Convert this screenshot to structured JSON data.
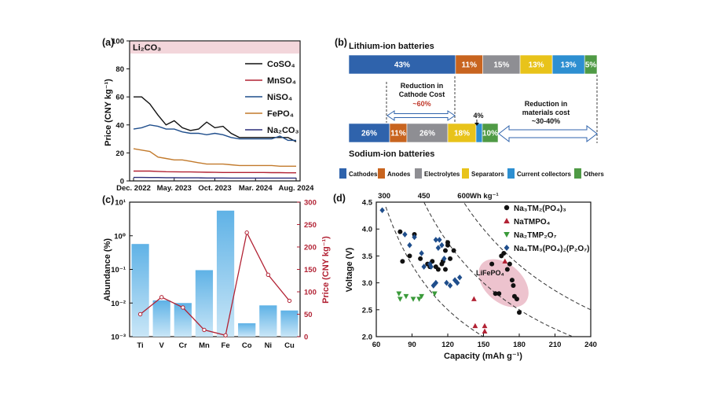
{
  "figure": {
    "panel_a": {
      "label": "(a)",
      "inner_title": "Li₂CO₃",
      "ylabel": "Price (CNY kg⁻¹)",
      "legend": [
        "CoSO₄",
        "MnSO₄",
        "NiSO₄",
        "FePO₄",
        "Na₂CO₃"
      ]
    },
    "panel_b": {
      "label": "(b)",
      "li_title": "Lithium-ion batteries",
      "na_title": "Sodium-ion batteries",
      "reduction_cathode": [
        "Reduction in",
        "Cathode Cost"
      ],
      "reduction_cathode_value": "~60%",
      "reduction_materials": [
        "Reduction in",
        "materials cost",
        "~30-40%"
      ],
      "four_pct": "4%",
      "legend": [
        "Cathodes",
        "Anodes",
        "Electrolytes",
        "Separators",
        "Current collectors",
        "Others"
      ]
    },
    "panel_c": {
      "label": "(c)",
      "ylabel_left": "Abundance (%)",
      "ylabel_right": "Price (CNY kg⁻¹)"
    },
    "panel_d": {
      "label": "(d)",
      "xlabel": "Capacity (mAh g⁻¹)",
      "ylabel": "Voltage (V)",
      "wh_unit": "Wh kg⁻¹",
      "ellipse_label": "LiFePO₄",
      "legend": [
        "Na₃TM₂(PO₄)₃",
        "NaTMPO₄",
        "Na₂TMP₂O₇",
        "Na₄TM₃(PO₄)₂(P₂O₇)"
      ]
    }
  },
  "chart_data": [
    {
      "type": "line",
      "panel": "a",
      "x": [
        "Dec. 2022",
        "Jan. 2023",
        "Feb. 2023",
        "Mar. 2023",
        "Apr. 2023",
        "May. 2023",
        "Jun. 2023",
        "Jul. 2023",
        "Aug. 2023",
        "Sep. 2023",
        "Oct. 2023",
        "Nov. 2023",
        "Dec. 2023",
        "Jan. 2024",
        "Feb. 2024",
        "Mar. 2024",
        "Apr. 2024",
        "May. 2024",
        "Jun. 2024",
        "Jul. 2024",
        "Aug. 2024"
      ],
      "xticks": [
        "Dec. 2022",
        "May. 2023",
        "Oct. 2023",
        "Mar. 2024",
        "Aug. 2024"
      ],
      "ylim": [
        0,
        100
      ],
      "yticks": [
        0,
        20,
        40,
        60,
        80,
        100
      ],
      "series": [
        {
          "name": "CoSO₄",
          "color": "#111111",
          "values": [
            60,
            60,
            55,
            47,
            40,
            43,
            38,
            36,
            37,
            42,
            38,
            39,
            34,
            31,
            31,
            31,
            31,
            31,
            31,
            31,
            28
          ]
        },
        {
          "name": "MnSO₄",
          "color": "#b22234",
          "values": [
            7,
            7,
            7,
            6.8,
            6.6,
            6.5,
            6.4,
            6.4,
            6.3,
            6.2,
            6.1,
            6,
            6,
            6,
            6,
            6,
            6,
            5.9,
            5.9,
            5.8,
            5.8
          ]
        },
        {
          "name": "NiSO₄",
          "color": "#1f4e8c",
          "values": [
            37,
            38,
            40,
            39,
            37,
            37,
            35,
            34,
            34,
            33,
            34,
            33,
            31,
            30,
            30,
            30,
            30,
            30,
            32,
            29,
            29
          ]
        },
        {
          "name": "FePO₄",
          "color": "#c27a2c",
          "values": [
            23,
            22,
            21,
            17,
            16,
            15,
            15,
            14,
            13,
            12,
            12,
            12,
            11.5,
            11,
            11,
            11,
            11,
            11,
            10.5,
            10.5,
            10.5
          ]
        },
        {
          "name": "Na₂CO₃",
          "color": "#2b2e7a",
          "values": [
            2.5,
            2.5,
            2.4,
            2.4,
            2.3,
            2.3,
            2.2,
            2.2,
            2.2,
            2.1,
            2.1,
            2.1,
            2,
            2,
            2,
            2,
            2,
            2,
            2,
            2,
            2
          ]
        }
      ]
    },
    {
      "type": "bar",
      "panel": "b",
      "series": [
        {
          "name": "Lithium-ion batteries",
          "categories": [
            "Cathodes",
            "Anodes",
            "Electrolytes",
            "Separators",
            "Current collectors",
            "Others"
          ],
          "values": [
            43,
            11,
            15,
            13,
            13,
            5
          ]
        },
        {
          "name": "Sodium-ion batteries",
          "categories": [
            "Cathodes",
            "Anodes",
            "Electrolytes",
            "Separators",
            "Current collectors",
            "Others"
          ],
          "values": [
            26,
            11,
            26,
            18,
            4,
            10
          ]
        }
      ],
      "colors": [
        "#2f63ac",
        "#c8641f",
        "#8e8e93",
        "#e8c31a",
        "#2d8fd1",
        "#4f9a45"
      ]
    },
    {
      "type": "bar",
      "panel": "c",
      "categories": [
        "Ti",
        "V",
        "Cr",
        "Mn",
        "Fe",
        "Co",
        "Ni",
        "Cu"
      ],
      "abundance_percent": [
        0.57,
        0.012,
        0.01,
        0.095,
        5.6,
        0.0025,
        0.0085,
        0.006
      ],
      "price_cny_per_kg": [
        50,
        88,
        65,
        15,
        3,
        232,
        138,
        80
      ],
      "ylim_left_log": [
        0.001,
        10
      ],
      "ylim_right": [
        0,
        300
      ],
      "yticks_right": [
        0,
        50,
        100,
        150,
        200,
        250,
        300
      ],
      "line_color": "#b22234"
    },
    {
      "type": "scatter",
      "panel": "d",
      "xlim": [
        60,
        240
      ],
      "ylim": [
        2.0,
        4.5
      ],
      "xticks": [
        60,
        90,
        120,
        150,
        180,
        210,
        240
      ],
      "yticks": [
        2.0,
        2.5,
        3.0,
        3.5,
        4.0,
        4.5
      ],
      "energy_lines_wh_kg": [
        300,
        450,
        600
      ],
      "series": [
        {
          "name": "Na₃TM₂(PO₄)₃",
          "marker": "circle",
          "color": "#111111",
          "points": [
            [
              80,
              3.95
            ],
            [
              82,
              3.4
            ],
            [
              88,
              3.5
            ],
            [
              92,
              3.9
            ],
            [
              97,
              3.45
            ],
            [
              103,
              3.35
            ],
            [
              105,
              3.3
            ],
            [
              107,
              3.4
            ],
            [
              110,
              3.3
            ],
            [
              112,
              3.25
            ],
            [
              115,
              3.35
            ],
            [
              116,
              3.4
            ],
            [
              118,
              3.25
            ],
            [
              118,
              3.6
            ],
            [
              120,
              3.75
            ],
            [
              120,
              3.7
            ],
            [
              122,
              3.45
            ],
            [
              125,
              3.6
            ],
            [
              157,
              3.35
            ],
            [
              160,
              2.8
            ],
            [
              163,
              2.8
            ],
            [
              165,
              3.5
            ],
            [
              167,
              3.55
            ],
            [
              170,
              3.25
            ],
            [
              172,
              3.35
            ],
            [
              174,
              3.05
            ],
            [
              175,
              2.95
            ],
            [
              176,
              2.75
            ],
            [
              178,
              2.7
            ],
            [
              180,
              2.45
            ]
          ]
        },
        {
          "name": "NaTMPO₄",
          "marker": "triangle",
          "color": "#b22234",
          "points": [
            [
              142,
              2.7
            ],
            [
              143,
              2.2
            ],
            [
              151,
              2.2
            ],
            [
              151,
              2.1
            ],
            [
              168,
              3.4
            ]
          ]
        },
        {
          "name": "Na₂TMP₂O₇",
          "marker": "triangle-down",
          "color": "#3a9a3a",
          "points": [
            [
              79,
              2.8
            ],
            [
              80,
              2.7
            ],
            [
              85,
              2.75
            ],
            [
              91,
              2.7
            ],
            [
              96,
              2.7
            ],
            [
              98,
              2.75
            ],
            [
              109,
              2.8
            ]
          ]
        },
        {
          "name": "Na₄TM₃(PO₄)₂(P₂O₇)",
          "marker": "diamond",
          "color": "#1f4e8c",
          "points": [
            [
              65,
              4.35
            ],
            [
              84,
              3.9
            ],
            [
              88,
              3.7
            ],
            [
              92,
              3.85
            ],
            [
              98,
              3.55
            ],
            [
              100,
              3.3
            ],
            [
              105,
              3.35
            ],
            [
              106,
              3.3
            ],
            [
              110,
              3.8
            ],
            [
              112,
              3.65
            ],
            [
              113,
              3.8
            ],
            [
              115,
              3.7
            ],
            [
              117,
              3.45
            ],
            [
              119,
              3.0
            ],
            [
              122,
              2.95
            ],
            [
              126,
              3.05
            ],
            [
              128,
              3.0
            ],
            [
              130,
              3.1
            ],
            [
              110,
              3.0
            ],
            [
              108,
              2.95
            ]
          ]
        }
      ]
    }
  ]
}
